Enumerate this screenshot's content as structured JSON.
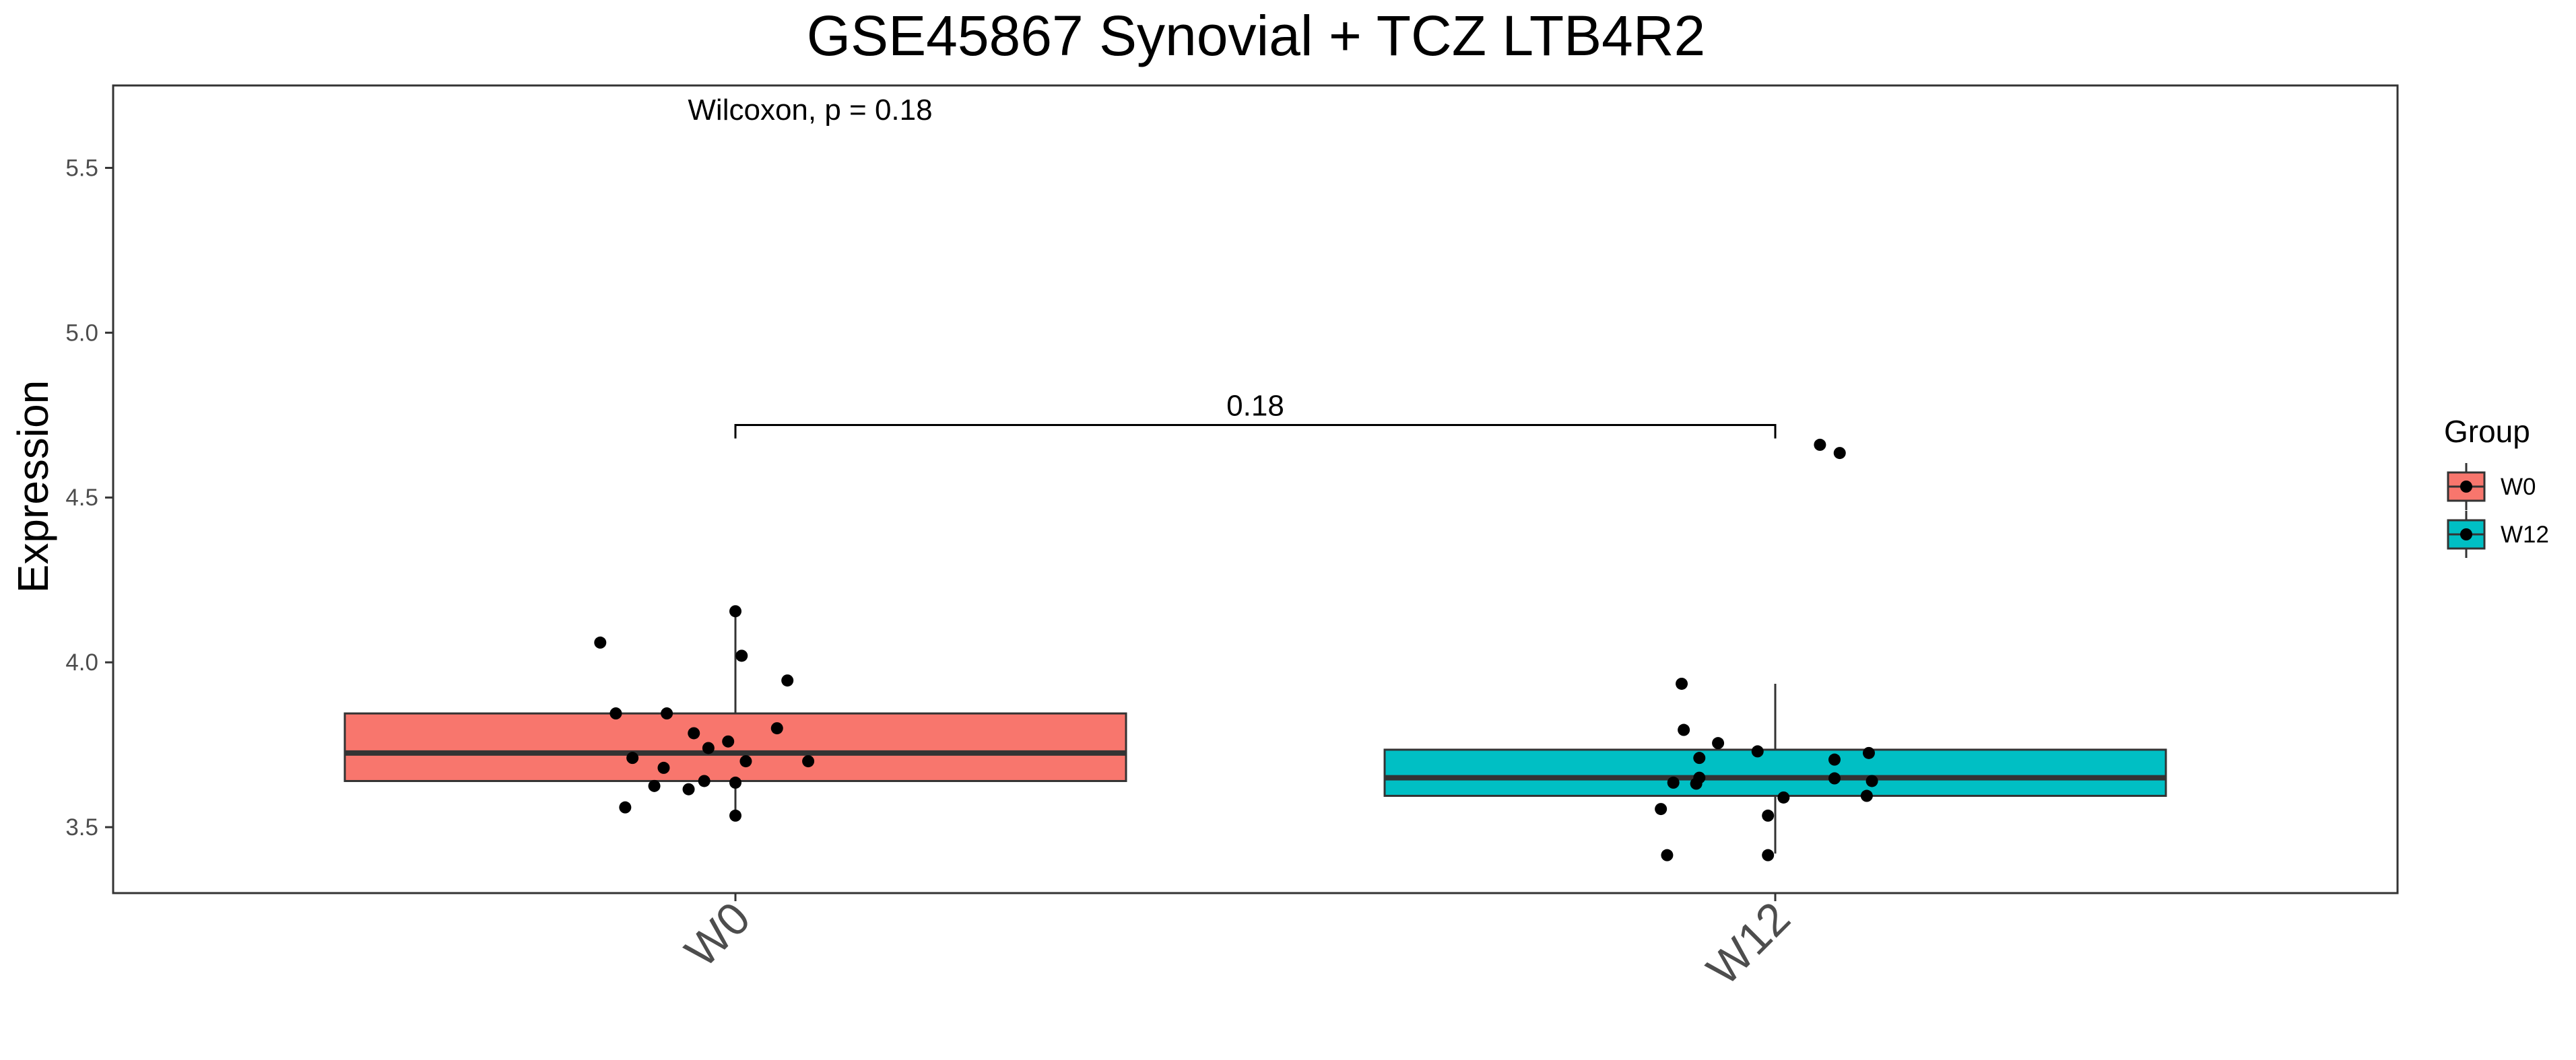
{
  "chart_data": {
    "type": "box",
    "title": "GSE45867 Synovial + TCZ LTB4R2",
    "xlabel": "",
    "ylabel": "Expression",
    "ylim": [
      3.3,
      5.75
    ],
    "yticks": [
      "3.5",
      "4.0",
      "4.5",
      "5.0",
      "5.5"
    ],
    "categories": [
      "W0",
      "W12"
    ],
    "colors": {
      "W0": "#F8766D",
      "W12": "#00BFC4"
    },
    "boxes": [
      {
        "group": "W0",
        "min": 3.53,
        "q1": 3.64,
        "median": 3.725,
        "q3": 3.845,
        "max": 4.155
      },
      {
        "group": "W12",
        "min": 3.42,
        "q1": 3.595,
        "median": 3.65,
        "q3": 3.735,
        "max": 3.935
      }
    ],
    "points": {
      "W0": [
        {
          "x": -0.13,
          "y": 4.06
        },
        {
          "x": 0.0,
          "y": 4.155
        },
        {
          "x": 0.006,
          "y": 4.02
        },
        {
          "x": 0.05,
          "y": 3.945
        },
        {
          "x": -0.115,
          "y": 3.845
        },
        {
          "x": -0.066,
          "y": 3.845
        },
        {
          "x": 0.04,
          "y": 3.8
        },
        {
          "x": -0.04,
          "y": 3.785
        },
        {
          "x": -0.007,
          "y": 3.76
        },
        {
          "x": -0.026,
          "y": 3.74
        },
        {
          "x": -0.099,
          "y": 3.71
        },
        {
          "x": 0.01,
          "y": 3.7
        },
        {
          "x": 0.07,
          "y": 3.7
        },
        {
          "x": -0.069,
          "y": 3.68
        },
        {
          "x": -0.03,
          "y": 3.64
        },
        {
          "x": -0.078,
          "y": 3.625
        },
        {
          "x": 0.0,
          "y": 3.635
        },
        {
          "x": -0.045,
          "y": 3.615
        },
        {
          "x": -0.106,
          "y": 3.56
        },
        {
          "x": 0.0,
          "y": 3.535
        }
      ],
      "W12": [
        {
          "x": 0.043,
          "y": 4.66
        },
        {
          "x": 0.062,
          "y": 4.635
        },
        {
          "x": -0.09,
          "y": 3.935
        },
        {
          "x": -0.088,
          "y": 3.795
        },
        {
          "x": -0.055,
          "y": 3.755
        },
        {
          "x": -0.017,
          "y": 3.73
        },
        {
          "x": 0.09,
          "y": 3.725
        },
        {
          "x": -0.073,
          "y": 3.71
        },
        {
          "x": 0.057,
          "y": 3.705
        },
        {
          "x": -0.073,
          "y": 3.65
        },
        {
          "x": 0.057,
          "y": 3.648
        },
        {
          "x": 0.093,
          "y": 3.64
        },
        {
          "x": -0.098,
          "y": 3.635
        },
        {
          "x": -0.076,
          "y": 3.632
        },
        {
          "x": 0.088,
          "y": 3.595
        },
        {
          "x": 0.008,
          "y": 3.59
        },
        {
          "x": -0.11,
          "y": 3.555
        },
        {
          "x": -0.007,
          "y": 3.535
        },
        {
          "x": -0.104,
          "y": 3.415
        },
        {
          "x": -0.007,
          "y": 3.415
        }
      ]
    },
    "annotation_top": "Wilcoxon, p = 0.18",
    "bracket": {
      "from": "W0",
      "to": "W12",
      "y": 4.72,
      "label": "0.18"
    },
    "legend": {
      "title": "Group",
      "position": "right",
      "items": [
        "W0",
        "W12"
      ]
    },
    "grid": false
  }
}
